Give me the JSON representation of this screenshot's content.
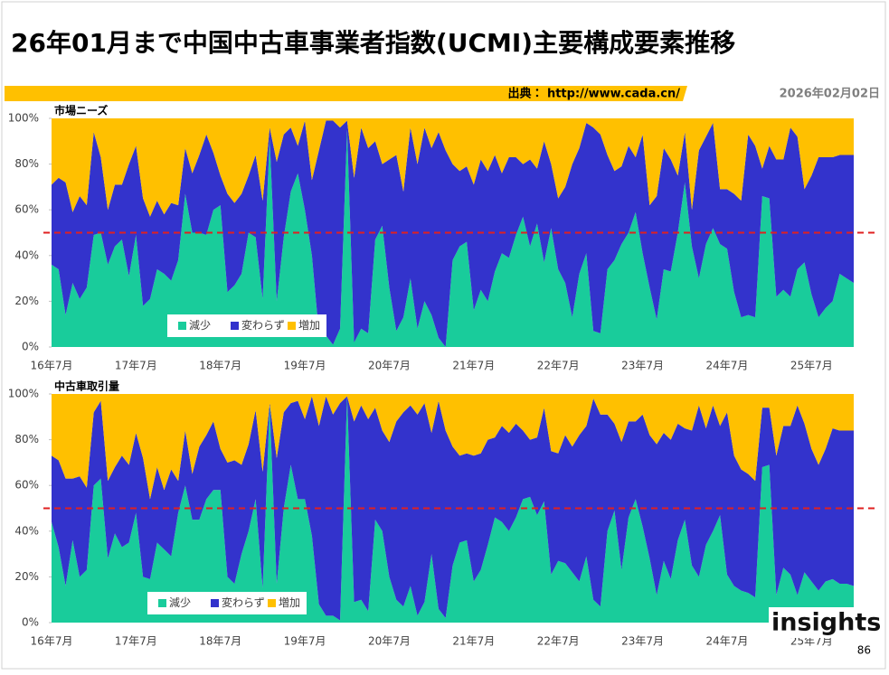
{
  "title": "26年01月まで中国中古車事業者指数(UCMI)主要構成要素推移",
  "source": "出典： http://www.cada.cn/",
  "date": "2026年02月02日",
  "page_number": "86",
  "logo": "insights",
  "chart_data": [
    {
      "type": "area",
      "stacked": true,
      "title": "市場ニーズ",
      "categories": [
        "16年7月",
        null,
        null,
        null,
        null,
        null,
        null,
        null,
        null,
        null,
        null,
        null,
        "17年7月",
        null,
        null,
        null,
        null,
        null,
        null,
        null,
        null,
        null,
        null,
        null,
        "18年7月",
        null,
        null,
        null,
        null,
        null,
        null,
        null,
        null,
        null,
        null,
        null,
        "19年7月",
        null,
        null,
        null,
        null,
        null,
        null,
        null,
        null,
        null,
        null,
        null,
        "20年7月",
        null,
        null,
        null,
        null,
        null,
        null,
        null,
        null,
        null,
        null,
        null,
        "21年7月",
        null,
        null,
        null,
        null,
        null,
        null,
        null,
        null,
        null,
        null,
        null,
        "22年7月",
        null,
        null,
        null,
        null,
        null,
        null,
        null,
        null,
        null,
        null,
        null,
        "23年7月",
        null,
        null,
        null,
        null,
        null,
        null,
        null,
        null,
        null,
        null,
        null,
        "24年7月",
        null,
        null,
        null,
        null,
        null,
        null,
        null,
        null,
        null,
        null,
        null,
        "25年7月",
        null,
        null,
        null,
        null,
        null,
        null
      ],
      "series": [
        {
          "name": "減少",
          "color": "#19cc9b",
          "values": [
            36,
            34,
            14,
            28,
            21,
            26,
            49,
            50,
            36,
            44,
            47,
            31,
            49,
            18,
            21,
            34,
            32,
            29,
            38,
            67,
            50,
            50,
            49,
            60,
            62,
            24,
            27,
            32,
            50,
            48,
            21,
            91,
            20,
            48,
            68,
            76,
            60,
            40,
            6,
            5,
            1,
            8,
            95,
            2,
            8,
            6,
            47,
            53,
            26,
            7,
            13,
            30,
            8,
            20,
            14,
            4,
            0,
            38,
            44,
            46,
            16,
            25,
            20,
            33,
            41,
            39,
            49,
            57,
            44,
            54,
            37,
            52,
            34,
            28,
            13,
            32,
            41,
            7,
            6,
            34,
            38,
            45,
            50,
            59,
            41,
            26,
            12,
            34,
            33,
            50,
            72,
            44,
            30,
            45,
            52,
            45,
            43,
            24,
            13,
            14,
            13,
            66,
            65,
            22,
            25,
            22,
            34,
            37,
            23,
            13,
            17,
            20,
            32,
            30,
            28
          ]
        },
        {
          "name": "変わらず",
          "color": "#3333cc",
          "values": [
            35,
            40,
            58,
            31,
            45,
            36,
            45,
            33,
            24,
            27,
            24,
            49,
            39,
            47,
            36,
            30,
            26,
            34,
            24,
            20,
            26,
            34,
            44,
            25,
            13,
            43,
            36,
            35,
            25,
            36,
            43,
            5,
            61,
            45,
            28,
            12,
            39,
            33,
            80,
            94,
            98,
            88,
            4,
            72,
            88,
            81,
            43,
            27,
            56,
            77,
            55,
            66,
            72,
            76,
            73,
            90,
            86,
            42,
            33,
            33,
            55,
            57,
            57,
            51,
            35,
            44,
            34,
            23,
            38,
            24,
            53,
            28,
            31,
            42,
            67,
            55,
            57,
            89,
            87,
            50,
            39,
            34,
            38,
            24,
            52,
            36,
            54,
            53,
            49,
            25,
            22,
            16,
            56,
            47,
            46,
            24,
            26,
            43,
            51,
            79,
            75,
            12,
            23,
            60,
            57,
            74,
            58,
            32,
            52,
            70,
            66,
            63,
            52,
            54,
            56
          ]
        },
        {
          "name": "増加",
          "color": "#ffc000",
          "values": [
            29,
            26,
            28,
            41,
            34,
            38,
            6,
            17,
            40,
            29,
            29,
            20,
            12,
            35,
            43,
            36,
            42,
            37,
            38,
            13,
            24,
            16,
            7,
            15,
            25,
            33,
            37,
            33,
            25,
            16,
            36,
            4,
            19,
            7,
            4,
            12,
            1,
            27,
            14,
            1,
            1,
            4,
            1,
            26,
            4,
            13,
            10,
            20,
            18,
            16,
            32,
            4,
            20,
            4,
            13,
            6,
            14,
            20,
            23,
            21,
            29,
            18,
            23,
            16,
            24,
            17,
            17,
            20,
            18,
            22,
            10,
            20,
            35,
            30,
            20,
            13,
            2,
            4,
            7,
            16,
            23,
            21,
            12,
            17,
            7,
            38,
            34,
            13,
            18,
            25,
            6,
            40,
            14,
            8,
            2,
            31,
            31,
            33,
            36,
            7,
            12,
            22,
            12,
            18,
            18,
            4,
            8,
            31,
            25,
            17,
            17,
            17,
            16,
            16,
            16
          ]
        }
      ],
      "ylim": [
        0,
        100
      ],
      "yticks": [
        {
          "value": 0,
          "label": "0%"
        },
        {
          "value": 20,
          "label": "20%"
        },
        {
          "value": 40,
          "label": "40%"
        },
        {
          "value": 60,
          "label": "60%"
        },
        {
          "value": 80,
          "label": "80%"
        },
        {
          "value": 100,
          "label": "100%"
        }
      ],
      "reference_line": 50,
      "reference_color": "#e02020",
      "grid": false
    },
    {
      "type": "area",
      "stacked": true,
      "title": "中古車取引量",
      "categories": [
        "16年7月",
        null,
        null,
        null,
        null,
        null,
        null,
        null,
        null,
        null,
        null,
        null,
        "17年7月",
        null,
        null,
        null,
        null,
        null,
        null,
        null,
        null,
        null,
        null,
        null,
        "18年7月",
        null,
        null,
        null,
        null,
        null,
        null,
        null,
        null,
        null,
        null,
        null,
        "19年7月",
        null,
        null,
        null,
        null,
        null,
        null,
        null,
        null,
        null,
        null,
        null,
        "20年7月",
        null,
        null,
        null,
        null,
        null,
        null,
        null,
        null,
        null,
        null,
        null,
        "21年7月",
        null,
        null,
        null,
        null,
        null,
        null,
        null,
        null,
        null,
        null,
        null,
        "22年7月",
        null,
        null,
        null,
        null,
        null,
        null,
        null,
        null,
        null,
        null,
        null,
        "23年7月",
        null,
        null,
        null,
        null,
        null,
        null,
        null,
        null,
        null,
        null,
        null,
        "24年7月",
        null,
        null,
        null,
        null,
        null,
        null,
        null,
        null,
        null,
        null,
        null,
        "25年7月",
        null,
        null,
        null,
        null,
        null,
        null
      ],
      "series": [
        {
          "name": "減少",
          "color": "#19cc9b",
          "values": [
            44,
            33,
            16,
            36,
            20,
            23,
            60,
            63,
            28,
            39,
            33,
            35,
            48,
            20,
            19,
            35,
            32,
            29,
            48,
            60,
            45,
            45,
            54,
            58,
            58,
            20,
            17,
            30,
            40,
            54,
            15,
            95,
            17,
            50,
            69,
            54,
            54,
            38,
            8,
            3,
            3,
            1,
            99,
            9,
            10,
            5,
            45,
            40,
            20,
            10,
            7,
            16,
            3,
            9,
            30,
            6,
            2,
            25,
            35,
            36,
            18,
            23,
            34,
            46,
            44,
            40,
            46,
            54,
            55,
            47,
            53,
            21,
            27,
            26,
            22,
            18,
            29,
            10,
            7,
            40,
            49,
            23,
            46,
            54,
            42,
            28,
            12,
            27,
            19,
            36,
            45,
            25,
            20,
            34,
            40,
            47,
            21,
            16,
            14,
            13,
            11,
            68,
            69,
            12,
            24,
            21,
            12,
            22,
            18,
            14,
            18,
            19,
            17,
            17,
            16
          ]
        },
        {
          "name": "変わらず",
          "color": "#3333cc",
          "values": [
            29,
            38,
            47,
            27,
            44,
            36,
            32,
            34,
            34,
            29,
            40,
            34,
            35,
            52,
            35,
            33,
            26,
            38,
            14,
            24,
            20,
            32,
            28,
            30,
            18,
            50,
            54,
            39,
            38,
            39,
            51,
            1,
            55,
            42,
            27,
            43,
            35,
            61,
            78,
            96,
            88,
            95,
            0,
            79,
            85,
            84,
            49,
            44,
            59,
            78,
            85,
            79,
            88,
            87,
            53,
            91,
            82,
            52,
            38,
            38,
            55,
            51,
            46,
            35,
            42,
            43,
            41,
            30,
            25,
            34,
            41,
            54,
            47,
            56,
            55,
            64,
            57,
            88,
            84,
            51,
            38,
            56,
            42,
            34,
            49,
            54,
            66,
            56,
            61,
            51,
            40,
            59,
            75,
            51,
            55,
            39,
            71,
            57,
            53,
            52,
            51,
            26,
            25,
            61,
            62,
            65,
            83,
            65,
            58,
            55,
            58,
            66,
            67,
            67,
            68
          ]
        },
        {
          "name": "増加",
          "color": "#ffc000",
          "values": [
            27,
            29,
            37,
            37,
            36,
            41,
            8,
            3,
            38,
            32,
            27,
            31,
            17,
            28,
            46,
            32,
            42,
            33,
            38,
            16,
            35,
            23,
            18,
            12,
            24,
            30,
            29,
            31,
            22,
            7,
            34,
            4,
            28,
            8,
            4,
            3,
            11,
            1,
            14,
            1,
            9,
            4,
            1,
            12,
            5,
            11,
            6,
            16,
            21,
            12,
            8,
            5,
            9,
            4,
            17,
            3,
            16,
            23,
            27,
            26,
            27,
            26,
            20,
            19,
            14,
            17,
            13,
            16,
            20,
            19,
            6,
            25,
            26,
            18,
            23,
            18,
            14,
            2,
            9,
            9,
            13,
            21,
            12,
            12,
            9,
            18,
            22,
            17,
            20,
            13,
            15,
            16,
            5,
            15,
            5,
            14,
            8,
            27,
            33,
            35,
            38,
            6,
            6,
            27,
            14,
            14,
            5,
            13,
            24,
            31,
            24,
            15,
            16,
            16,
            16
          ]
        }
      ],
      "ylim": [
        0,
        100
      ],
      "yticks": [
        {
          "value": 0,
          "label": "0%"
        },
        {
          "value": 20,
          "label": "20%"
        },
        {
          "value": 40,
          "label": "40%"
        },
        {
          "value": 60,
          "label": "60%"
        },
        {
          "value": 80,
          "label": "80%"
        },
        {
          "value": 100,
          "label": "100%"
        }
      ],
      "reference_line": 50,
      "reference_color": "#e02020",
      "grid": false
    }
  ]
}
